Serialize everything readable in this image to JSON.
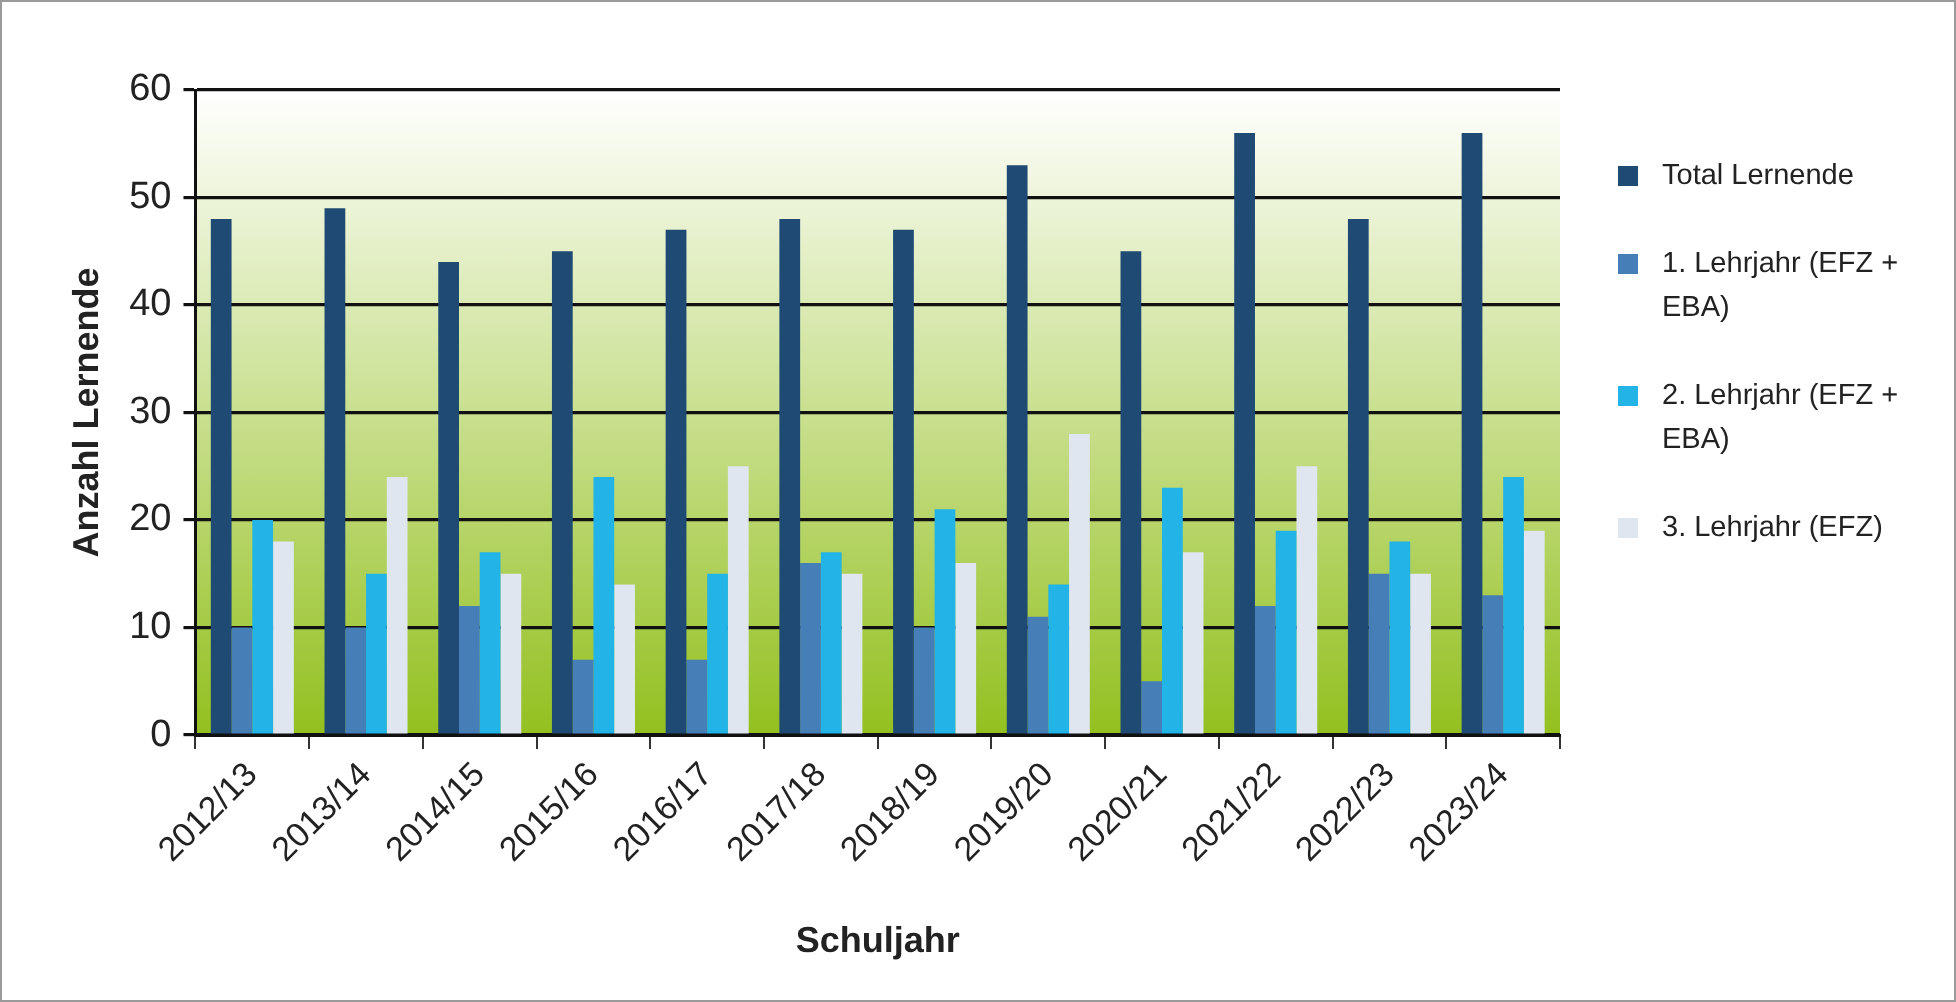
{
  "chart_data": {
    "type": "bar",
    "xlabel": "Schuljahr",
    "ylabel": "Anzahl Lernende",
    "categories": [
      "2012/13",
      "2013/14",
      "2014/15",
      "2015/16",
      "2016/17",
      "2017/18",
      "2018/19",
      "2019/20",
      "2020/21",
      "2021/22",
      "2022/23",
      "2023/24"
    ],
    "series": [
      {
        "name": "Total Lernende",
        "color": "#1f4a73",
        "values": [
          48,
          49,
          44,
          45,
          47,
          48,
          47,
          53,
          45,
          56,
          48,
          56
        ]
      },
      {
        "name": "1. Lehrjahr (EFZ + EBA)",
        "color": "#467fb7",
        "values": [
          10,
          10,
          12,
          7,
          7,
          16,
          10,
          11,
          5,
          12,
          15,
          13
        ]
      },
      {
        "name": "2. Lehrjahr (EFZ + EBA)",
        "color": "#22b4e6",
        "values": [
          20,
          15,
          17,
          24,
          15,
          17,
          21,
          14,
          23,
          19,
          18,
          24
        ]
      },
      {
        "name": "3. Lehrjahr (EFZ)",
        "color": "#dfe6ef",
        "values": [
          18,
          24,
          15,
          14,
          25,
          15,
          16,
          28,
          17,
          25,
          15,
          19
        ]
      }
    ],
    "ylim": [
      0,
      60
    ],
    "yticks": [
      0,
      10,
      20,
      30,
      40,
      50,
      60
    ],
    "grid": "y",
    "legend": "right"
  }
}
